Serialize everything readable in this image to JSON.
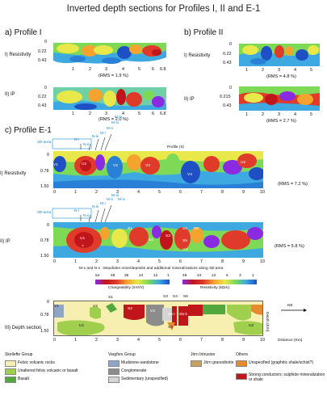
{
  "title": "Inverted depth sections for Profiles I, II and E-1",
  "profile_a": {
    "heading": "a) Profile I",
    "resistivity_label": "I) Resistivity",
    "ip_label": "II) IP",
    "depths_res": [
      "0",
      "0.22",
      "0.43"
    ],
    "depths_ip": [
      "0",
      "0.22",
      "0.43"
    ],
    "ticks": [
      "1",
      "2",
      "3",
      "4",
      "5",
      "6",
      "6.8"
    ],
    "rms_res": "(RMS = 1.9 %)",
    "rms_ip": "(RMS = 2.0 %)"
  },
  "profile_b": {
    "heading": "b) Profile II",
    "resistivity_label": "I) Resistivity",
    "ip_label": "II) IP",
    "depths_res": [
      "0",
      "0.22",
      "0.43"
    ],
    "depths_ip": [
      "0",
      "0.215",
      "0.43"
    ],
    "ticks": [
      "1",
      "2",
      "3",
      "4",
      "5"
    ],
    "rms_res": "(RMS = 4.8 %)",
    "rms_ip": "(RMS = 2.7 %)"
  },
  "profile_c": {
    "heading": "c) Profile E-1",
    "resistivity_label": "I) Resistivity",
    "ip_label": "II) IP",
    "depth_label": "III) Depth section",
    "depths": [
      "0",
      "0.78",
      "1.50"
    ],
    "ticks": [
      "0",
      "1",
      "2",
      "3",
      "4",
      "5",
      "6",
      "7",
      "8",
      "9",
      "10"
    ],
    "area_label": "3D-area",
    "profile_ii_label": "Profile (II)",
    "rms_res": "(RMS = 7.2 %)",
    "rms_ip": "(RMS = 5.8 %)",
    "markers": [
      "N-i",
      "N-ii",
      "N-iii",
      "M-i",
      "M-ii",
      "M-iii",
      "M-iv"
    ],
    "res_units": [
      "V1",
      "U1",
      "V2",
      "V3",
      "V4",
      "U2"
    ],
    "ip_units": [
      "U1",
      "?",
      "S1",
      "S2",
      "S3",
      "S4",
      "S5",
      "S6",
      "V4"
    ],
    "depth_units": [
      "V1",
      "U1",
      "S1",
      "S2",
      "V2",
      "V3",
      "S3",
      "S4",
      "S6",
      "S5-i",
      "S5-ii",
      "V4",
      "U2"
    ],
    "note": "M-x and N-x : Maurliden mine/deposits and additional mineralizations along 3D-area",
    "depth_axis_label": "Depth (Km)",
    "distance_label": "Distance (Km)",
    "north_label": "NE"
  },
  "colorbars": {
    "chargeability": {
      "label": "Chargeability (mV/V)",
      "ticks": [
        "54",
        "48",
        "36",
        "24",
        "12",
        "1"
      ]
    },
    "resistivity": {
      "label": "Resistivity (kΩm)",
      "ticks": [
        "48",
        "24",
        "12",
        "6",
        "3",
        "1"
      ]
    }
  },
  "legend": {
    "groups": [
      {
        "title": "Skellefte Group",
        "items": [
          {
            "label": "Felsic volcanic rocks",
            "color": "#f6efb0"
          },
          {
            "label": "Unaltered felsic volcanic or basalt",
            "color": "#9fcf4c"
          },
          {
            "label": "Basalt",
            "color": "#52a83c"
          }
        ]
      },
      {
        "title": "Vargfors Group",
        "items": [
          {
            "label": "Mudstone-sandstone",
            "color": "#8fa6c8"
          },
          {
            "label": "Conglomerate",
            "color": "#8c8c8c"
          },
          {
            "label": "Sedimentary (unspecified)",
            "color": "#d4d4d4"
          }
        ]
      },
      {
        "title": "Jörn Intrusion",
        "items": [
          {
            "label": "Jörn granodiorite",
            "color": "#c8a060"
          }
        ]
      },
      {
        "title": "Others",
        "items": [
          {
            "label": "Unspecified (graphitic shale/schist?)",
            "color": "#e68a2e"
          },
          {
            "label": "Strong conductors; sulphide mineralization or shale",
            "color": "#c0161b"
          }
        ]
      }
    ]
  }
}
